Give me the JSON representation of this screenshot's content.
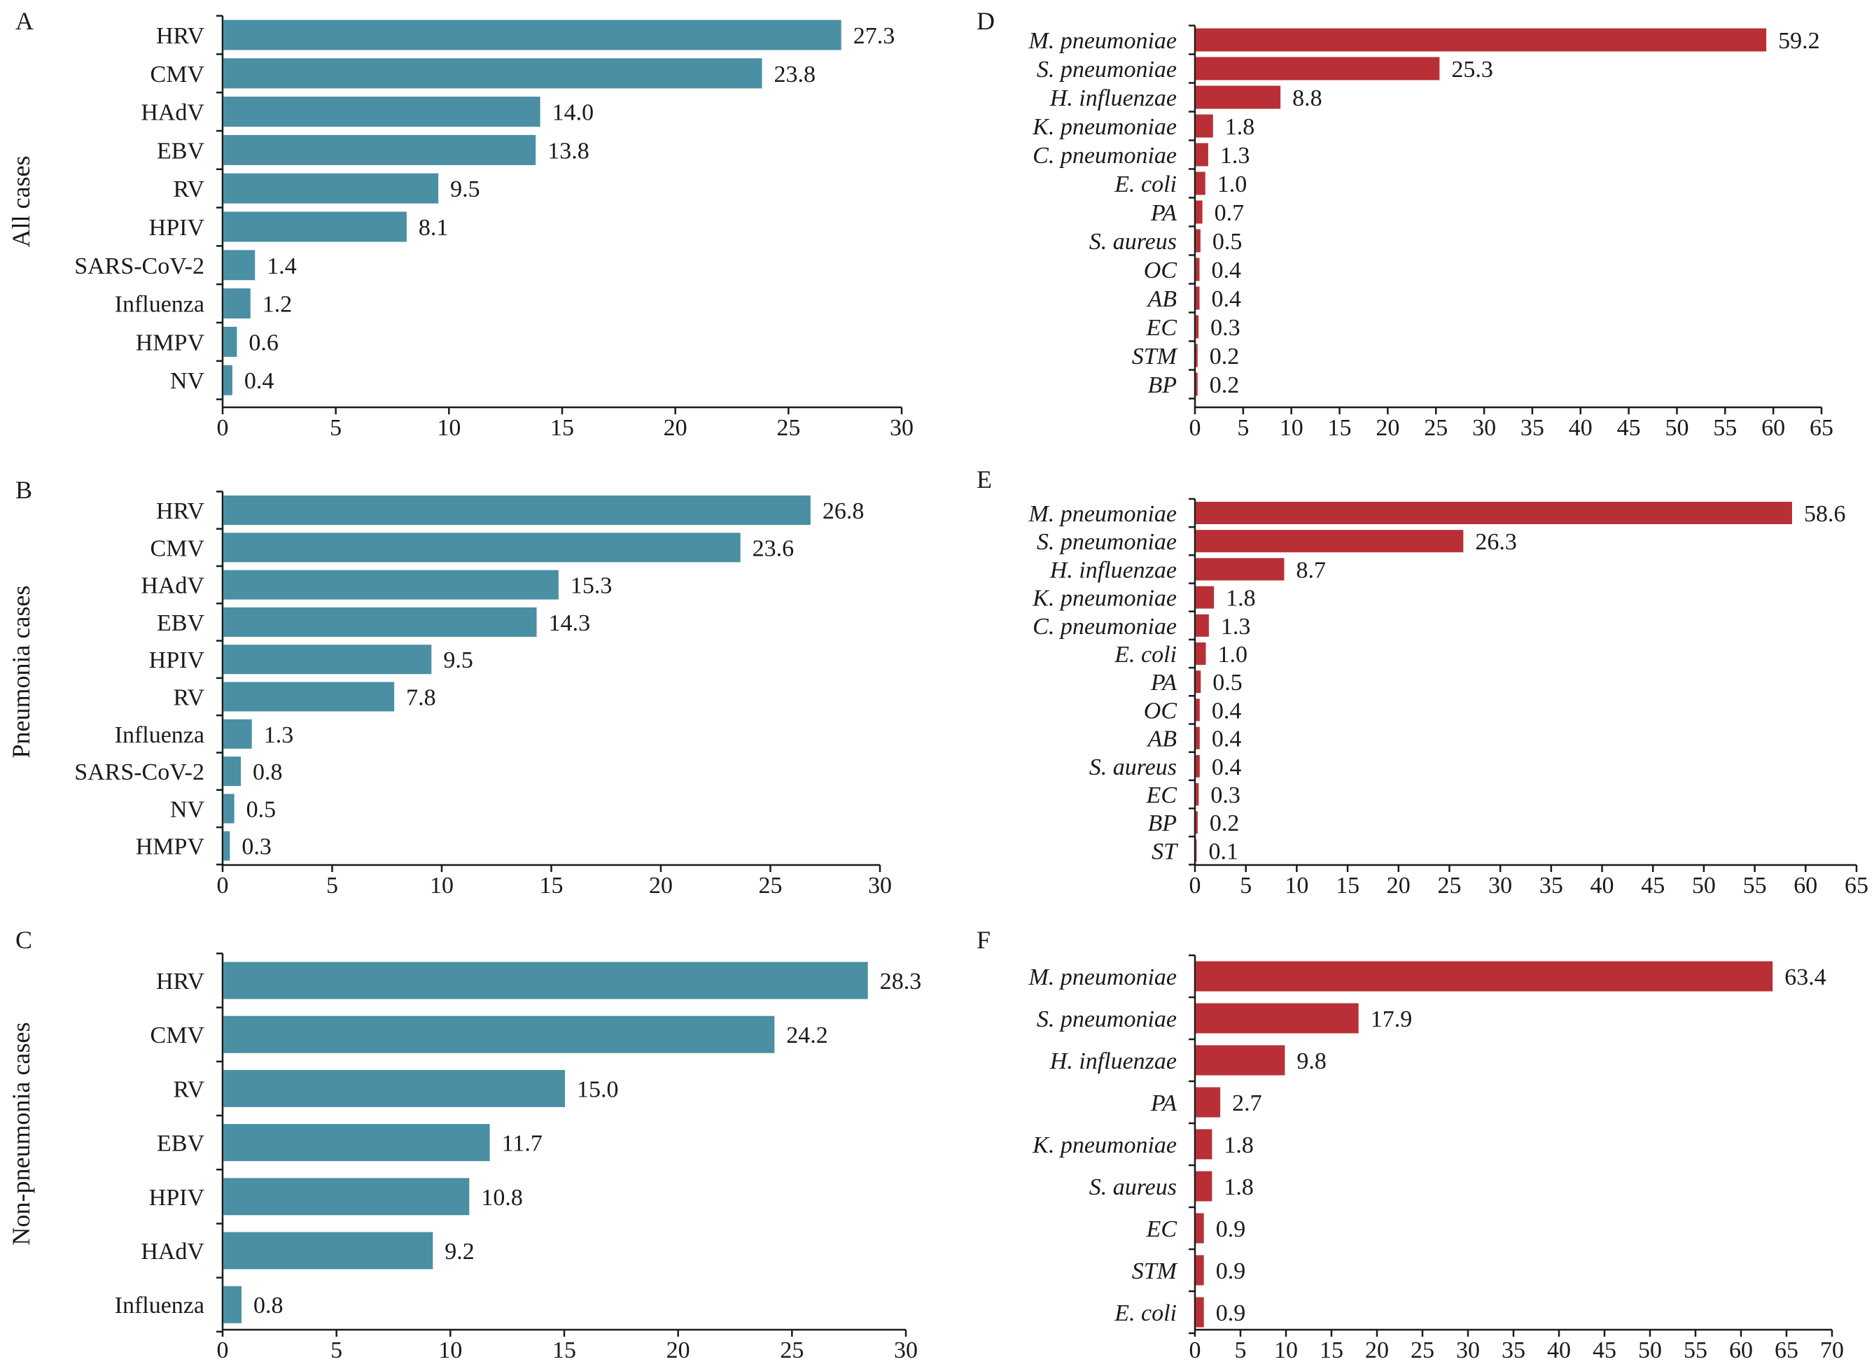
{
  "row_titles": [
    "All cases",
    "Pneumonia cases",
    "Non-pneumonia cases"
  ],
  "chart_data": [
    {
      "panel": "A",
      "type": "bar",
      "orientation": "horizontal",
      "italic_categories": false,
      "color": "#4a8fa3",
      "categories": [
        "HRV",
        "CMV",
        "HAdV",
        "EBV",
        "RV",
        "HPIV",
        "SARS-CoV-2",
        "Influenza",
        "HMPV",
        "NV"
      ],
      "values": [
        27.3,
        23.8,
        14.0,
        13.8,
        9.5,
        8.1,
        1.4,
        1.2,
        0.6,
        0.4
      ],
      "value_labels": [
        "27.3",
        "23.8",
        "14.0",
        "13.8",
        "9.5",
        "8.1",
        "1.4",
        "1.2",
        "0.6",
        "0.4"
      ],
      "xlim": [
        0,
        30
      ],
      "xticks": [
        "0",
        "5",
        "10",
        "15",
        "20",
        "25",
        "30"
      ]
    },
    {
      "panel": "B",
      "type": "bar",
      "orientation": "horizontal",
      "italic_categories": false,
      "color": "#4a8fa3",
      "categories": [
        "HRV",
        "CMV",
        "HAdV",
        "EBV",
        "HPIV",
        "RV",
        "Influenza",
        "SARS-CoV-2",
        "NV",
        "HMPV"
      ],
      "values": [
        26.8,
        23.6,
        15.3,
        14.3,
        9.5,
        7.8,
        1.3,
        0.8,
        0.5,
        0.3
      ],
      "value_labels": [
        "26.8",
        "23.6",
        "15.3",
        "14.3",
        "9.5",
        "7.8",
        "1.3",
        "0.8",
        "0.5",
        "0.3"
      ],
      "xlim": [
        0,
        30
      ],
      "xticks": [
        "0",
        "5",
        "10",
        "15",
        "20",
        "25",
        "30"
      ]
    },
    {
      "panel": "C",
      "type": "bar",
      "orientation": "horizontal",
      "italic_categories": false,
      "color": "#4a8fa3",
      "categories": [
        "HRV",
        "CMV",
        "RV",
        "EBV",
        "HPIV",
        "HAdV",
        "Influenza"
      ],
      "values": [
        28.3,
        24.2,
        15.0,
        11.7,
        10.8,
        9.2,
        0.8
      ],
      "value_labels": [
        "28.3",
        "24.2",
        "15.0",
        "11.7",
        "10.8",
        "9.2",
        "0.8"
      ],
      "xlim": [
        0,
        30
      ],
      "xticks": [
        "0",
        "5",
        "10",
        "15",
        "20",
        "25",
        "30"
      ]
    },
    {
      "panel": "D",
      "type": "bar",
      "orientation": "horizontal",
      "italic_categories": true,
      "color": "#b83036",
      "categories": [
        "M. pneumoniae",
        "S. pneumoniae",
        "H. influenzae",
        "K. pneumoniae",
        "C. pneumoniae",
        "E. coli",
        "PA",
        "S. aureus",
        "OC",
        "AB",
        "EC",
        "STM",
        "BP"
      ],
      "values": [
        59.2,
        25.3,
        8.8,
        1.8,
        1.3,
        1.0,
        0.7,
        0.5,
        0.4,
        0.4,
        0.3,
        0.2,
        0.2
      ],
      "value_labels": [
        "59.2",
        "25.3",
        "8.8",
        "1.8",
        "1.3",
        "1.0",
        "0.7",
        "0.5",
        "0.4",
        "0.4",
        "0.3",
        "0.2",
        "0.2"
      ],
      "xlim": [
        0,
        65
      ],
      "xticks": [
        "0",
        "5",
        "10",
        "15",
        "20",
        "25",
        "30",
        "35",
        "40",
        "45",
        "50",
        "55",
        "60",
        "65"
      ]
    },
    {
      "panel": "E",
      "type": "bar",
      "orientation": "horizontal",
      "italic_categories": true,
      "color": "#b83036",
      "categories": [
        "M. pneumoniae",
        "S. pneumoniae",
        "H. influenzae",
        "K. pneumoniae",
        "C. pneumoniae",
        "E. coli",
        "PA",
        "OC",
        "AB",
        "S. aureus",
        "EC",
        "BP",
        "ST"
      ],
      "values": [
        58.6,
        26.3,
        8.7,
        1.8,
        1.3,
        1.0,
        0.5,
        0.4,
        0.4,
        0.4,
        0.3,
        0.2,
        0.1
      ],
      "value_labels": [
        "58.6",
        "26.3",
        "8.7",
        "1.8",
        "1.3",
        "1.0",
        "0.5",
        "0.4",
        "0.4",
        "0.4",
        "0.3",
        "0.2",
        "0.1"
      ],
      "xlim": [
        0,
        65
      ],
      "xticks": [
        "0",
        "5",
        "10",
        "15",
        "20",
        "25",
        "30",
        "35",
        "40",
        "45",
        "50",
        "55",
        "60",
        "65"
      ]
    },
    {
      "panel": "F",
      "type": "bar",
      "orientation": "horizontal",
      "italic_categories": true,
      "color": "#b83036",
      "categories": [
        "M. pneumoniae",
        "S. pneumoniae",
        "H. influenzae",
        "PA",
        "K. pneumoniae",
        "S. aureus",
        "EC",
        "STM",
        "E. coli"
      ],
      "values": [
        63.4,
        17.9,
        9.8,
        2.7,
        1.8,
        1.8,
        0.9,
        0.9,
        0.9
      ],
      "value_labels": [
        "63.4",
        "17.9",
        "9.8",
        "2.7",
        "1.8",
        "1.8",
        "0.9",
        "0.9",
        "0.9"
      ],
      "xlim": [
        0,
        70
      ],
      "xticks": [
        "0",
        "5",
        "10",
        "15",
        "20",
        "25",
        "30",
        "35",
        "40",
        "45",
        "50",
        "55",
        "60",
        "65",
        "70"
      ]
    }
  ]
}
